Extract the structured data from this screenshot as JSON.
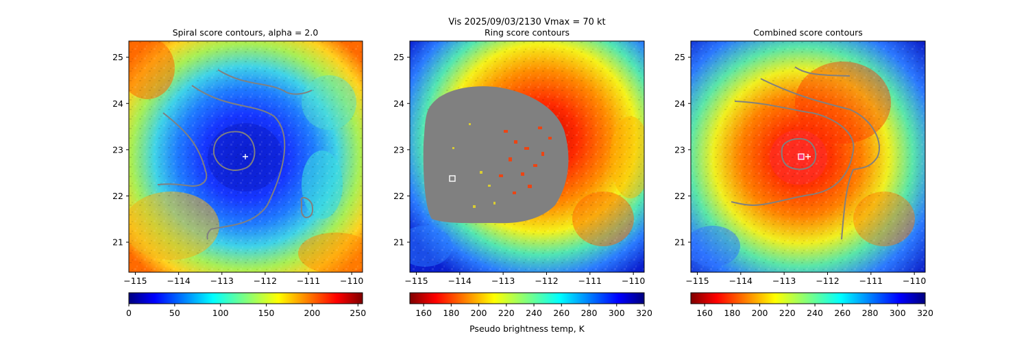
{
  "figure": {
    "suptitle_line1": "Vis  2025/09/03/2130    Vmax = 70 kt",
    "colorbar_label": "Pseudo brightness temp, K"
  },
  "colors": {
    "contour": "#808080",
    "marker": "#ffffff",
    "magenta_marker": "#ff00ff"
  },
  "chart_data": [
    {
      "type": "heatmap",
      "title": "Spiral score contours, alpha =  2.0",
      "x_ticks": [
        "−115",
        "−114",
        "−113",
        "−112",
        "−111",
        "−110"
      ],
      "y_ticks": [
        "21",
        "22",
        "23",
        "24",
        "25"
      ],
      "xlim": [
        -115.15,
        -109.75
      ],
      "ylim": [
        20.35,
        25.35
      ],
      "colormap": "jet_r",
      "colorbar_range": [
        0,
        255
      ],
      "colorbar_ticks": [
        "0",
        "50",
        "100",
        "150",
        "200",
        "250"
      ],
      "center_marker": [
        -112.5,
        22.85
      ],
      "box_marker": null
    },
    {
      "type": "heatmap",
      "title": "Ring score contours",
      "x_ticks": [
        "−115",
        "−114",
        "−113",
        "−112",
        "−111",
        "−110"
      ],
      "y_ticks": [
        "21",
        "22",
        "23",
        "24",
        "25"
      ],
      "xlim": [
        -115.15,
        -109.75
      ],
      "ylim": [
        20.35,
        25.35
      ],
      "colormap": "jet",
      "colorbar_range": [
        150,
        320
      ],
      "colorbar_ticks": [
        "160",
        "180",
        "200",
        "220",
        "240",
        "260",
        "280",
        "300",
        "320"
      ],
      "center_marker": null,
      "box_marker": [
        -114.2,
        22.38
      ]
    },
    {
      "type": "heatmap",
      "title": "Combined score contours",
      "x_ticks": [
        "−115",
        "−114",
        "−113",
        "−112",
        "−111",
        "−110"
      ],
      "y_ticks": [
        "21",
        "22",
        "23",
        "24",
        "25"
      ],
      "xlim": [
        -115.15,
        -109.75
      ],
      "ylim": [
        20.35,
        25.35
      ],
      "colormap": "jet",
      "colorbar_range": [
        150,
        320
      ],
      "colorbar_ticks": [
        "160",
        "180",
        "200",
        "220",
        "240",
        "260",
        "280",
        "300",
        "320"
      ],
      "center_marker": [
        -112.5,
        22.85
      ],
      "box_marker": [
        -112.7,
        22.85
      ]
    }
  ]
}
